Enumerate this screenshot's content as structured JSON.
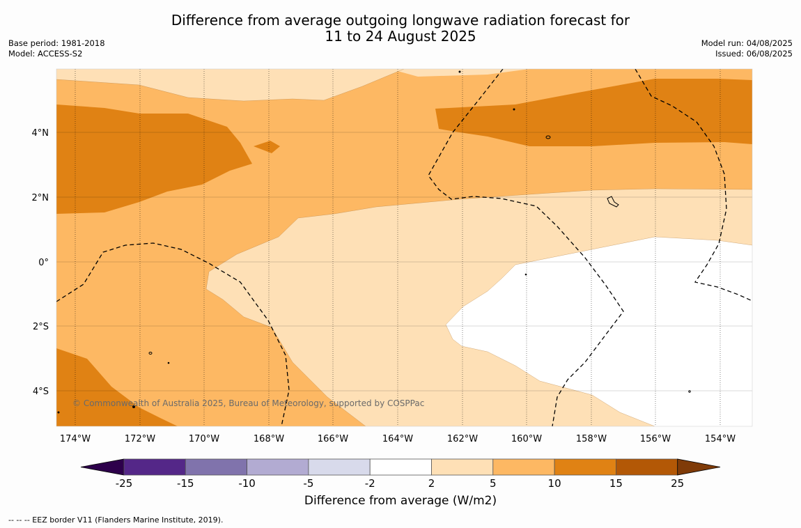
{
  "title_line1": "Difference from average outgoing longwave radiation forecast for",
  "title_line2": "11 to 24 August 2025",
  "base_period": "Base period: 1981-2018",
  "model": "Model: ACCESS-S2",
  "model_run": "Model run: 04/08/2025",
  "issued": "Issued: 06/08/2025",
  "copyright": "© Commonwealth of Australia 2025, Bureau of Meteorology, supported by COSPPac",
  "lat_labels": [
    "4°N",
    "2°N",
    "0°",
    "2°S",
    "4°S"
  ],
  "lon_labels": [
    "174°W",
    "172°W",
    "170°W",
    "168°W",
    "166°W",
    "164°W",
    "162°W",
    "160°W",
    "158°W",
    "156°W",
    "154°W"
  ],
  "colorbar": {
    "ticks": [
      "-25",
      "-15",
      "-10",
      "-5",
      "-2",
      "2",
      "5",
      "10",
      "15",
      "25"
    ],
    "colors": [
      "#2d004b",
      "#542788",
      "#8073ac",
      "#b2abd2",
      "#d8daeb",
      "#ffffff",
      "#fee0b6",
      "#fdb863",
      "#e08214",
      "#b35806",
      "#7f3b08"
    ],
    "title": "Difference from average (W/m2)"
  },
  "footer": "--  --  -- EEZ border V11 (Flanders Marine Institute, 2019).",
  "icons": [
    "eez-border-dashed-line",
    "island-outline"
  ]
}
